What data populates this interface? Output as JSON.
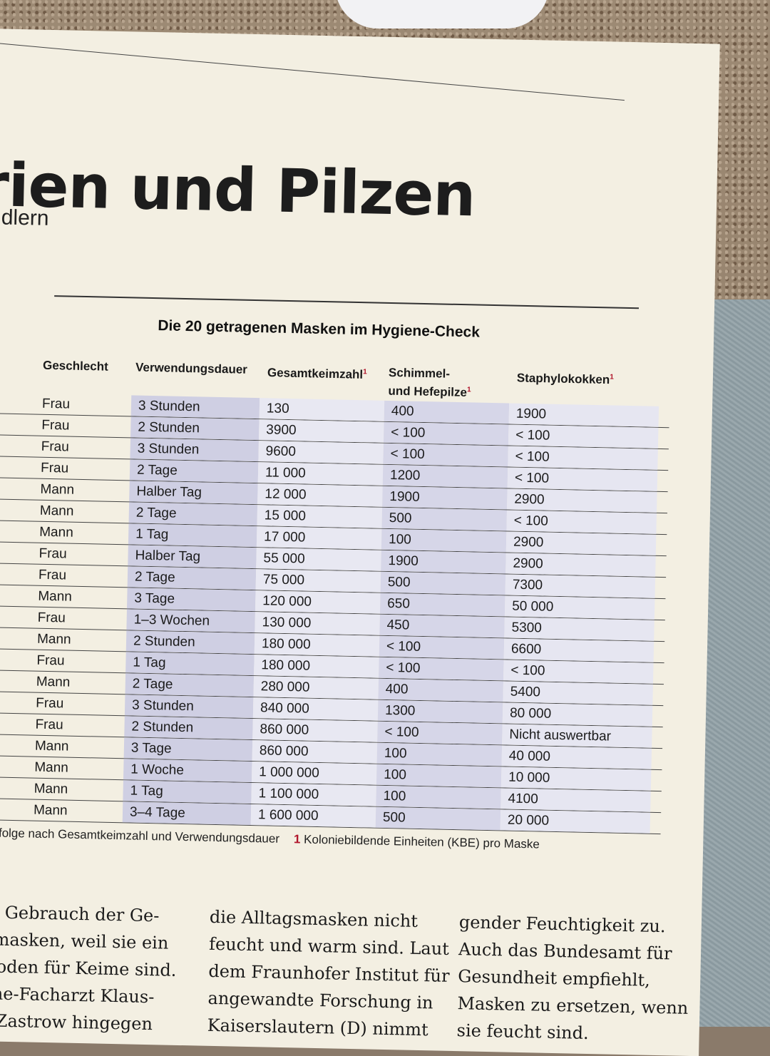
{
  "headline": "erien und Pilzen",
  "subhead": "endlern",
  "table": {
    "title": "Die 20 getragenen Masken im Hygiene-Check",
    "columns": {
      "gender": "Geschlecht",
      "duration": "Verwendungsdauer",
      "total": "Gesamtkeimzahl",
      "mold_line1": "Schimmel-",
      "mold_line2": "und Hefepilze",
      "staph": "Staphylokokken",
      "footnote_mark": "1"
    },
    "rows": [
      {
        "gender": "Frau",
        "duration": "3 Stunden",
        "total": "130",
        "mold": "400",
        "staph": "1900"
      },
      {
        "gender": "Frau",
        "duration": "2 Stunden",
        "total": "3900",
        "mold": "< 100",
        "staph": "< 100"
      },
      {
        "gender": "Frau",
        "duration": "3 Stunden",
        "total": "9600",
        "mold": "< 100",
        "staph": "< 100"
      },
      {
        "gender": "Frau",
        "duration": "2 Tage",
        "total": "11 000",
        "mold": "1200",
        "staph": "< 100"
      },
      {
        "gender": "Mann",
        "duration": "Halber Tag",
        "total": "12 000",
        "mold": "1900",
        "staph": "2900"
      },
      {
        "gender": "Mann",
        "duration": "2 Tage",
        "total": "15 000",
        "mold": "500",
        "staph": "< 100"
      },
      {
        "gender": "Mann",
        "duration": "1 Tag",
        "total": "17 000",
        "mold": "100",
        "staph": "2900"
      },
      {
        "gender": "Frau",
        "duration": "Halber Tag",
        "total": "55 000",
        "mold": "1900",
        "staph": "2900"
      },
      {
        "gender": "Frau",
        "duration": "2 Tage",
        "total": "75 000",
        "mold": "500",
        "staph": "7300"
      },
      {
        "gender": "Mann",
        "duration": "3 Tage",
        "total": "120 000",
        "mold": "650",
        "staph": "50 000"
      },
      {
        "gender": "Frau",
        "duration": "1–3 Wochen",
        "total": "130 000",
        "mold": "450",
        "staph": "5300"
      },
      {
        "gender": "Mann",
        "duration": "2 Stunden",
        "total": "180 000",
        "mold": "< 100",
        "staph": "6600"
      },
      {
        "gender": "Frau",
        "duration": "1 Tag",
        "total": "180 000",
        "mold": "< 100",
        "staph": "< 100"
      },
      {
        "gender": "Mann",
        "duration": "2 Tage",
        "total": "280 000",
        "mold": "400",
        "staph": "5400"
      },
      {
        "gender": "Frau",
        "duration": "3 Stunden",
        "total": "840 000",
        "mold": "1300",
        "staph": "80 000"
      },
      {
        "gender": "Frau",
        "duration": "2 Stunden",
        "total": "860 000",
        "mold": "< 100",
        "staph": "Nicht auswertbar"
      },
      {
        "gender": "Mann",
        "duration": "3 Tage",
        "total": "860 000",
        "mold": "100",
        "staph": "40 000"
      },
      {
        "gender": "Mann",
        "duration": "1 Woche",
        "total": "1 000 000",
        "mold": "100",
        "staph": "10 000"
      },
      {
        "gender": "Mann",
        "duration": "1 Tag",
        "total": "1 100 000",
        "mold": "100",
        "staph": "4100"
      },
      {
        "gender": "Mann",
        "duration": "3–4 Tage",
        "total": "1 600 000",
        "mold": "500",
        "staph": "20 000"
      }
    ],
    "footnote_left": "eihenfolge nach Gesamtkeimzahl und Verwendungsdauer",
    "footnote_num": "1",
    "footnote_right": "Koloniebildende Einheiten (KBE) pro Maske"
  },
  "body_text": {
    "col1": [
      "hen Gebrauch der Ge-",
      "htsmasken, weil sie ein",
      "hrboden für Keime sind.",
      "giene-Facharzt Klaus-",
      "ter Zastrow hingegen"
    ],
    "col2": [
      "die Alltagsmasken nicht",
      "feucht und warm sind. Laut",
      "dem Fraunhofer Institut für",
      "angewandte Forschung in",
      "Kaiserslautern (D) nimmt"
    ],
    "col3": [
      "gender Feuchtigkeit zu.",
      "Auch das Bundesamt für",
      "Gesundheit empfiehlt,",
      "Masken zu ersetzen, wenn",
      "sie feucht sind."
    ]
  }
}
